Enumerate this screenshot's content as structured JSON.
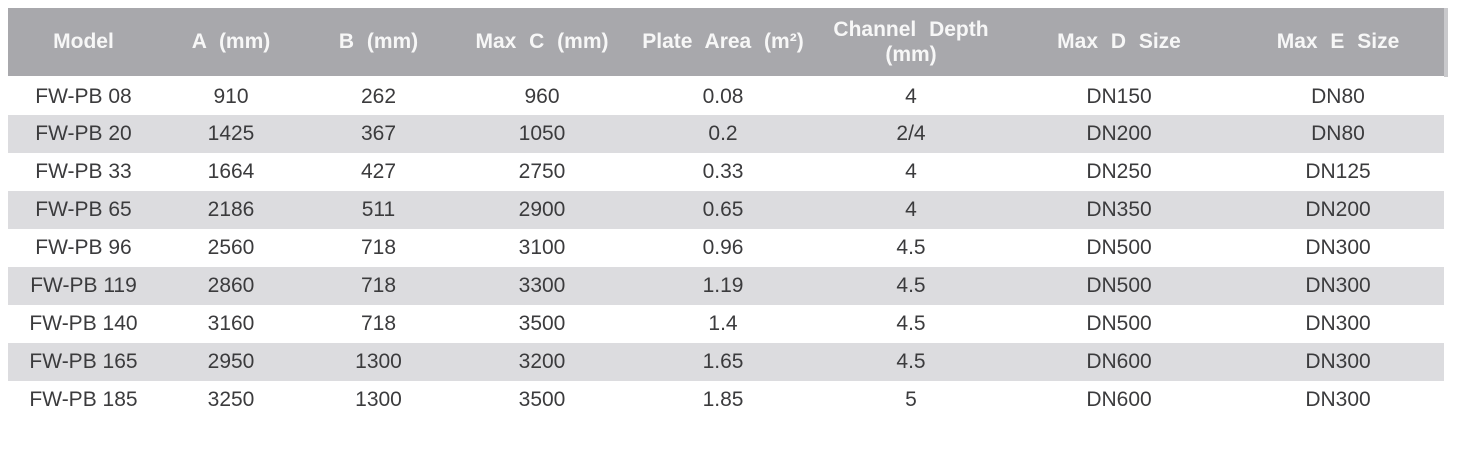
{
  "chart_data": {
    "type": "table",
    "columns": [
      "Model",
      "A (mm)",
      "B (mm)",
      "Max C (mm)",
      "Plate Area (m²)",
      "Channel Depth (mm)",
      "Max D Size",
      "Max E Size"
    ],
    "rows": [
      [
        "FW-PB 08",
        "910",
        "262",
        "960",
        "0.08",
        "4",
        "DN150",
        "DN80"
      ],
      [
        "FW-PB 20",
        "1425",
        "367",
        "1050",
        "0.2",
        "2/4",
        "DN200",
        "DN80"
      ],
      [
        "FW-PB 33",
        "1664",
        "427",
        "2750",
        "0.33",
        "4",
        "DN250",
        "DN125"
      ],
      [
        "FW-PB 65",
        "2186",
        "511",
        "2900",
        "0.65",
        "4",
        "DN350",
        "DN200"
      ],
      [
        "FW-PB 96",
        "2560",
        "718",
        "3100",
        "0.96",
        "4.5",
        "DN500",
        "DN300"
      ],
      [
        "FW-PB 119",
        "2860",
        "718",
        "3300",
        "1.19",
        "4.5",
        "DN500",
        "DN300"
      ],
      [
        "FW-PB 140",
        "3160",
        "718",
        "3500",
        "1.4",
        "4.5",
        "DN500",
        "DN300"
      ],
      [
        "FW-PB 165",
        "2950",
        "1300",
        "3200",
        "1.65",
        "4.5",
        "DN600",
        "DN300"
      ],
      [
        "FW-PB 185",
        "3250",
        "1300",
        "3500",
        "1.85",
        "5",
        "DN600",
        "DN300"
      ]
    ],
    "layout": {
      "header_rows": 1,
      "row_striping": "even-rows-gray",
      "alignment": "center"
    }
  },
  "colors": {
    "header_bg": "#a8a8ac",
    "header_text": "#f7f7f7",
    "header_right_edge": "#c9c9cc",
    "row_alt_bg": "#dcdcdf",
    "row_bg": "#ffffff",
    "body_text": "#3b3b3d",
    "page_bg": "#ffffff"
  }
}
